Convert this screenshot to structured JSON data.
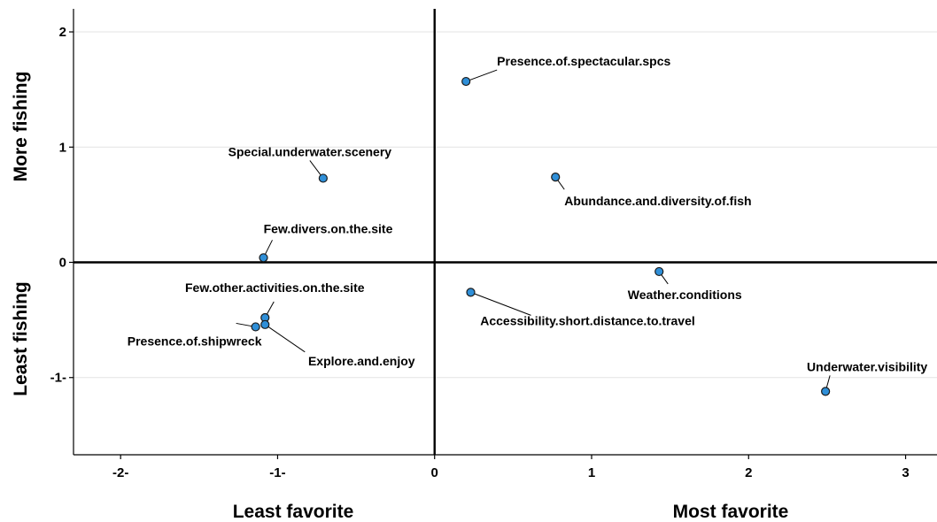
{
  "chart_data": {
    "type": "scatter",
    "title": "",
    "xlim": [
      -2.3,
      3.2
    ],
    "ylim": [
      -1.67,
      2.2
    ],
    "grid": "horizontal",
    "x_ticks": [
      {
        "value": -2,
        "label": "-2-"
      },
      {
        "value": -1,
        "label": "-1-"
      },
      {
        "value": 0,
        "label": "0"
      },
      {
        "value": 1,
        "label": "1"
      },
      {
        "value": 2,
        "label": "2"
      },
      {
        "value": 3,
        "label": "3"
      }
    ],
    "y_ticks": [
      {
        "value": 2,
        "label": "2"
      },
      {
        "value": 1,
        "label": "1"
      },
      {
        "value": 0,
        "label": "0"
      },
      {
        "value": -1,
        "label": "-1-"
      }
    ],
    "x_axis_titles": {
      "left": "Least favorite",
      "right": "Most favorite"
    },
    "y_axis_titles": {
      "top": "More fishing",
      "bottom": "Least fishing"
    },
    "point_color": "#2f8fd8",
    "points": [
      {
        "label": "Presence.of.spectacular.spcs",
        "x": 0.2,
        "y": 1.57
      },
      {
        "label": "Special.underwater.scenery",
        "x": -0.71,
        "y": 0.73
      },
      {
        "label": "Abundance.and.diversity.of.fish",
        "x": 0.77,
        "y": 0.74
      },
      {
        "label": "Few.divers.on.the.site",
        "x": -1.09,
        "y": 0.04
      },
      {
        "label": "Weather.conditions",
        "x": 1.43,
        "y": -0.08
      },
      {
        "label": "Few.other.activities.on.the.site",
        "x": -1.08,
        "y": -0.48
      },
      {
        "label": "Accessibility.short.distance.to.travel",
        "x": 0.23,
        "y": -0.26
      },
      {
        "label": "Presence.of.shipwreck",
        "x": -1.14,
        "y": -0.56
      },
      {
        "label": "Explore.and.enjoy",
        "x": -1.08,
        "y": -0.54
      },
      {
        "label": "Underwater.visibility",
        "x": 2.49,
        "y": -1.12
      }
    ]
  }
}
